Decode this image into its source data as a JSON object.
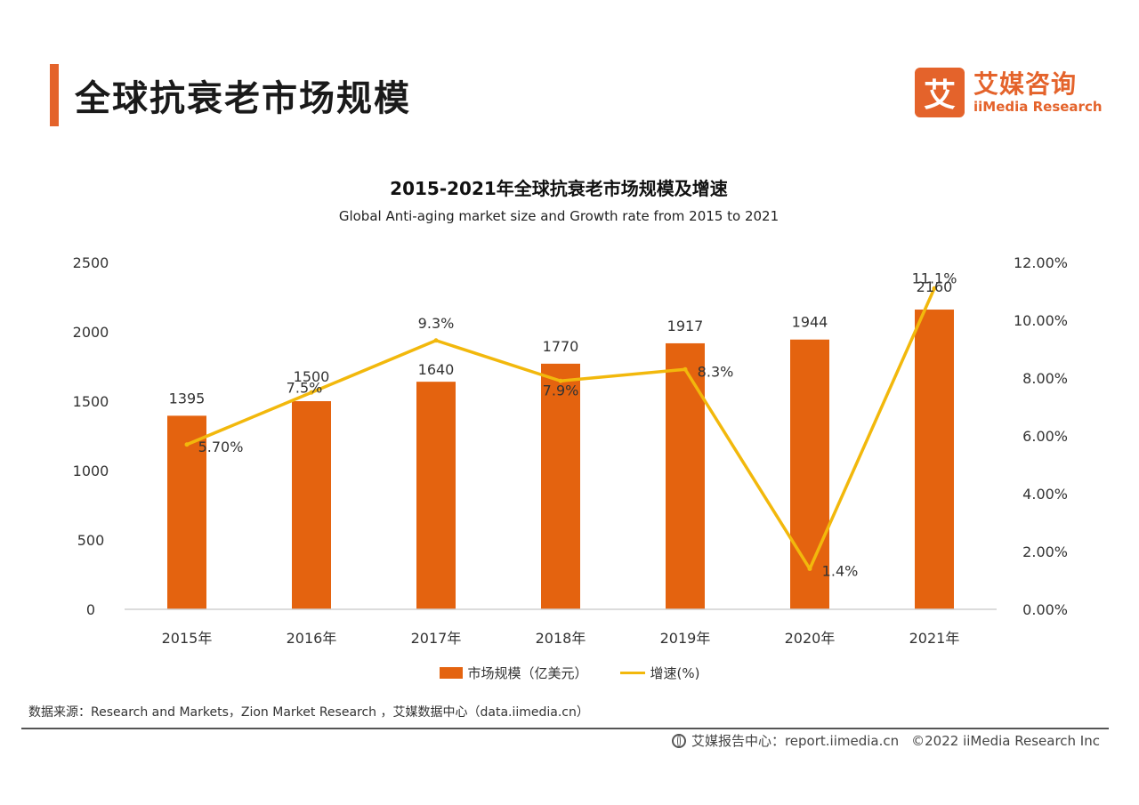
{
  "header": {
    "title": "全球抗衰老市场规模",
    "logo": {
      "mark": "艾",
      "name_cn": "艾媒咨询",
      "name_en": "iiMedia Research"
    }
  },
  "chart_data": {
    "type": "bar",
    "title": "2015-2021年全球抗衰老市场规模及增速",
    "subtitle": "Global Anti-aging market size and Growth rate from 2015 to 2021",
    "categories": [
      "2015年",
      "2016年",
      "2017年",
      "2018年",
      "2019年",
      "2020年",
      "2021年"
    ],
    "series": [
      {
        "name": "市场规模（亿美元）",
        "type": "bar",
        "axis": "left",
        "values": [
          1395,
          1500,
          1640,
          1770,
          1917,
          1944,
          2160
        ],
        "labels": [
          "1395",
          "1500",
          "1640",
          "1770",
          "1917",
          "1944",
          "2160"
        ],
        "color": "#e4630f"
      },
      {
        "name": "增速(%)",
        "type": "line",
        "axis": "right",
        "values": [
          5.7,
          7.5,
          9.3,
          7.9,
          8.3,
          1.4,
          11.1
        ],
        "labels": [
          "5.70%",
          "7.5%",
          "9.3%",
          "7.9%",
          "8.3%",
          "1.4%",
          "11.1%"
        ],
        "color": "#f2b80c"
      }
    ],
    "y_left": {
      "min": 0,
      "max": 2500,
      "ticks": [
        "0",
        "500",
        "1000",
        "1500",
        "2000",
        "2500"
      ]
    },
    "y_right": {
      "min": 0,
      "max": 12,
      "ticks": [
        "0.00%",
        "2.00%",
        "4.00%",
        "6.00%",
        "8.00%",
        "10.00%",
        "12.00%"
      ]
    },
    "grid": false,
    "legend_position": "bottom-center"
  },
  "footer": {
    "source": "数据来源：Research and Markets，Zion Market Research ，艾媒数据中心（data.iimedia.cn）",
    "site": "艾媒报告中心：report.iimedia.cn",
    "copyright": "©2022  iiMedia Research  Inc"
  }
}
